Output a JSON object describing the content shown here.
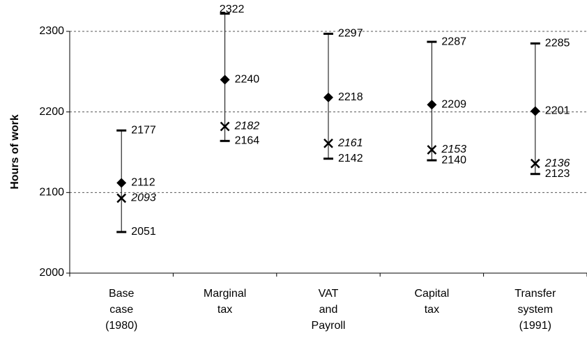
{
  "chart_data": {
    "type": "hilo",
    "y_label": "Hours of work",
    "categories": [
      [
        "Base",
        "case",
        "(1980)"
      ],
      [
        "Marginal",
        "tax"
      ],
      [
        "VAT",
        "and",
        "Payroll"
      ],
      [
        "Capital",
        "tax"
      ],
      [
        "Transfer",
        "system",
        "(1991)"
      ]
    ],
    "high": [
      2177,
      2322,
      2297,
      2287,
      2285
    ],
    "low": [
      2051,
      2164,
      2142,
      2140,
      2123
    ],
    "series": [
      {
        "marker": "diamond",
        "color": "#000000",
        "values": [
          2112,
          2240,
          2218,
          2209,
          2201
        ]
      },
      {
        "marker": "cross",
        "color": "#000000",
        "italic": true,
        "values": [
          2093,
          2182,
          2161,
          2153,
          2136
        ]
      }
    ],
    "ylim": [
      2000,
      2300
    ],
    "yticks": [
      2000,
      2100,
      2200,
      2300
    ],
    "grid": true
  }
}
